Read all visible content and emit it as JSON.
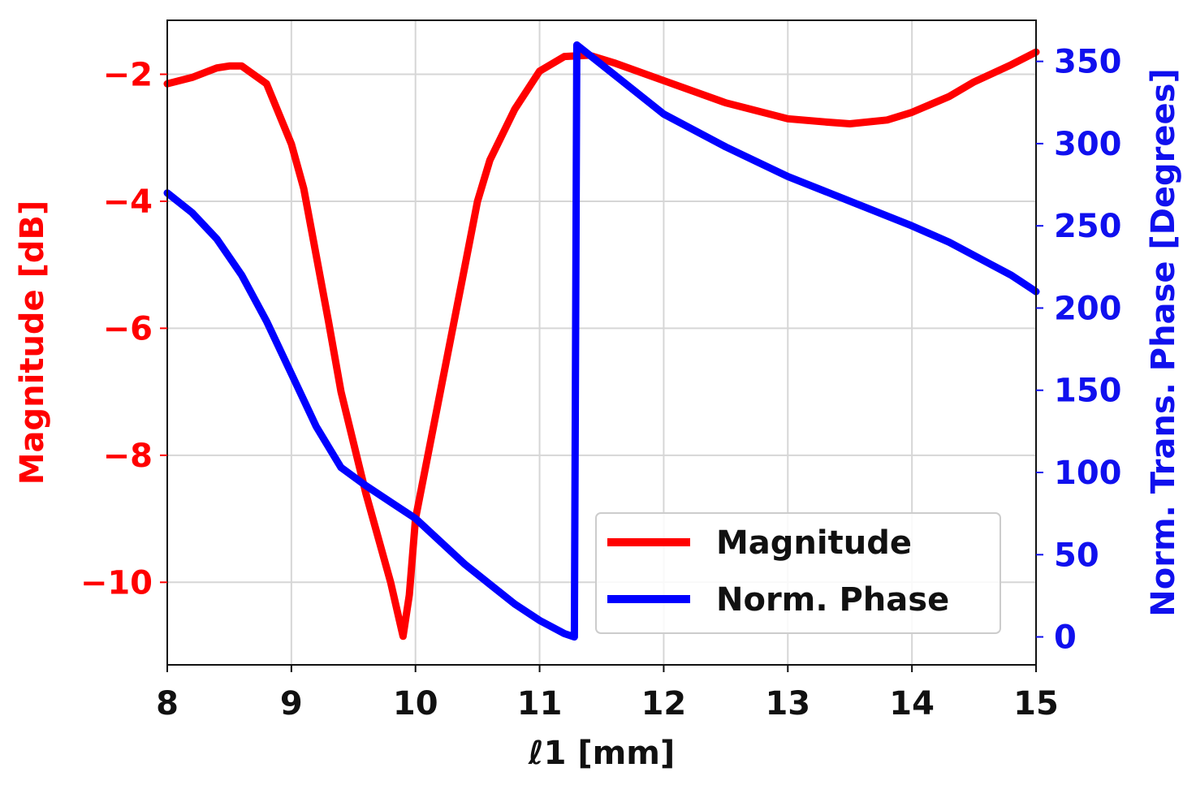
{
  "chart_data": {
    "type": "line",
    "title": "",
    "xlabel": "ℓ1 [mm]",
    "ylabel_left": "Magnitude [dB]",
    "ylabel_right": "Norm. Trans. Phase [Degrees]",
    "xlim": [
      8,
      15
    ],
    "ylim_left": [
      -11.3,
      -1.15
    ],
    "ylim_right": [
      -17,
      375
    ],
    "x_ticks": [
      "8",
      "9",
      "10",
      "11",
      "12",
      "13",
      "14",
      "15"
    ],
    "y_left_ticks": [
      "−2",
      "−4",
      "−6",
      "−8",
      "−10"
    ],
    "y_right_ticks": [
      "0",
      "50",
      "100",
      "150",
      "200",
      "250",
      "300",
      "350"
    ],
    "grid": true,
    "legend_position": "lower-right",
    "series": [
      {
        "name": "Magnitude",
        "axis": "left",
        "color": "#ff0000",
        "x": [
          8.0,
          8.2,
          8.4,
          8.5,
          8.6,
          8.8,
          9.0,
          9.1,
          9.2,
          9.3,
          9.4,
          9.6,
          9.8,
          9.9,
          9.95,
          10.0,
          10.2,
          10.4,
          10.5,
          10.6,
          10.8,
          11.0,
          11.2,
          11.4,
          11.6,
          12.0,
          12.5,
          13.0,
          13.3,
          13.5,
          13.8,
          14.0,
          14.3,
          14.5,
          14.8,
          15.0
        ],
        "y": [
          -2.15,
          -2.05,
          -1.9,
          -1.87,
          -1.87,
          -2.15,
          -3.1,
          -3.8,
          -4.85,
          -5.9,
          -7.0,
          -8.6,
          -10.0,
          -10.85,
          -10.2,
          -9.0,
          -7.0,
          -5.0,
          -4.0,
          -3.35,
          -2.55,
          -1.95,
          -1.72,
          -1.7,
          -1.82,
          -2.1,
          -2.45,
          -2.7,
          -2.75,
          -2.78,
          -2.72,
          -2.6,
          -2.35,
          -2.12,
          -1.85,
          -1.65
        ]
      },
      {
        "name": "Norm. Phase",
        "axis": "right",
        "color": "#0000ff",
        "x": [
          8.0,
          8.2,
          8.4,
          8.6,
          8.8,
          9.0,
          9.2,
          9.4,
          9.6,
          9.8,
          10.0,
          10.2,
          10.4,
          10.6,
          10.8,
          11.0,
          11.2,
          11.28,
          11.3,
          11.6,
          12.0,
          12.5,
          13.0,
          13.5,
          14.0,
          14.3,
          14.6,
          14.8,
          15.0
        ],
        "y": [
          270,
          258,
          242,
          220,
          192,
          160,
          128,
          103,
          92,
          82,
          72,
          58,
          44,
          32,
          20,
          10,
          2,
          0,
          360,
          342,
          318,
          298,
          280,
          265,
          250,
          240,
          228,
          220,
          210
        ]
      }
    ]
  }
}
